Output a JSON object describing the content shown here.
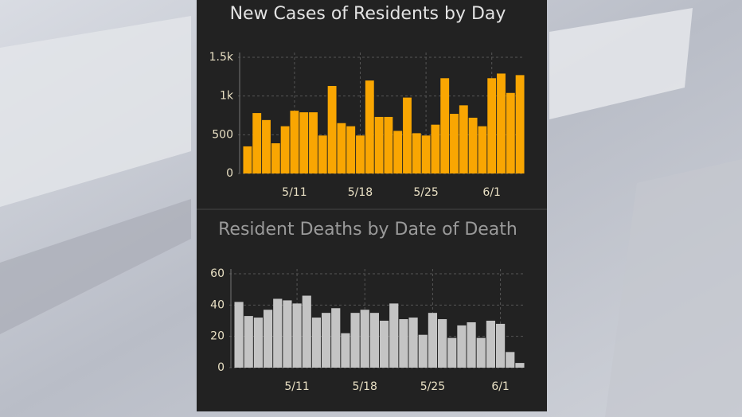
{
  "chart_data": [
    {
      "type": "bar",
      "title": "New Cases of Residents by Day",
      "categories": [
        null,
        null,
        null,
        null,
        null,
        "5/11",
        null,
        null,
        null,
        null,
        null,
        null,
        "5/18",
        null,
        null,
        null,
        null,
        null,
        null,
        "5/25",
        null,
        null,
        null,
        null,
        null,
        null,
        "6/1",
        null,
        null,
        null
      ],
      "values": [
        350,
        780,
        690,
        390,
        610,
        810,
        790,
        790,
        490,
        1130,
        650,
        610,
        490,
        1200,
        730,
        730,
        550,
        980,
        520,
        490,
        630,
        1230,
        770,
        880,
        720,
        610,
        1230,
        1290,
        1040,
        1270
      ],
      "color": "#f9a602",
      "ylim": [
        0,
        1500
      ],
      "yticks": [
        0,
        500,
        {
          "value": 1000,
          "label": "1k"
        },
        {
          "value": 1500,
          "label": "1.5k"
        }
      ],
      "grid": true
    },
    {
      "type": "bar",
      "title": "Resident Deaths by Date of Death",
      "categories": [
        null,
        null,
        null,
        null,
        null,
        null,
        "5/11",
        null,
        null,
        null,
        null,
        null,
        null,
        "5/18",
        null,
        null,
        null,
        null,
        null,
        null,
        "5/25",
        null,
        null,
        null,
        null,
        null,
        null,
        "6/1",
        null,
        null
      ],
      "values": [
        42,
        33,
        32,
        37,
        44,
        43,
        41,
        46,
        32,
        35,
        38,
        22,
        35,
        37,
        35,
        30,
        41,
        31,
        32,
        21,
        35,
        31,
        19,
        27,
        29,
        19,
        30,
        28,
        10,
        3
      ],
      "color": "#c4c4c4",
      "ylim": [
        0,
        60
      ],
      "yticks": [
        0,
        20,
        40,
        60
      ],
      "grid": true
    }
  ]
}
